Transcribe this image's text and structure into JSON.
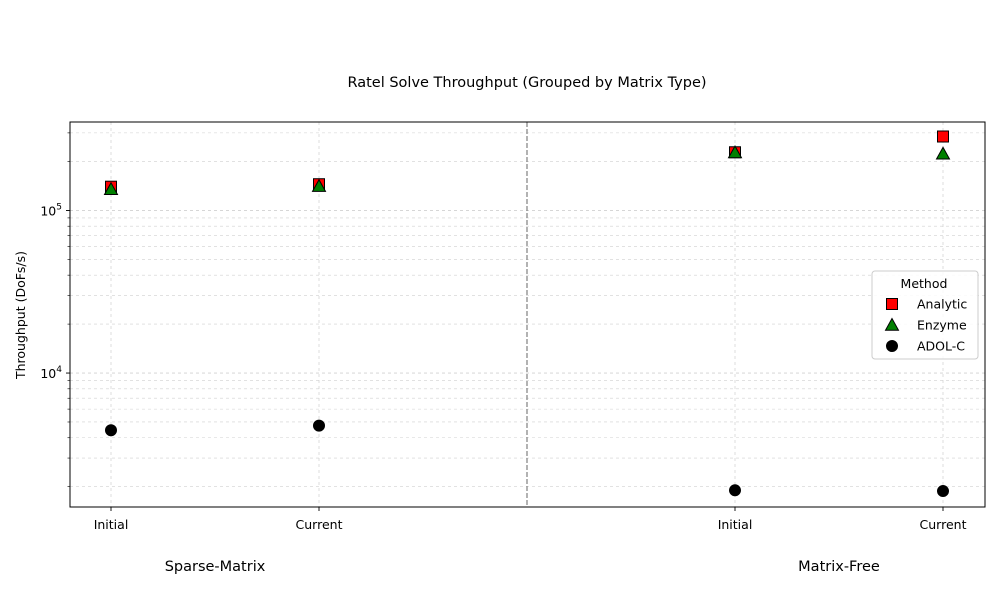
{
  "chart_data": {
    "type": "scatter",
    "title": "Ratel Solve Throughput (Grouped by Matrix Type)",
    "ylabel": "Throughput (DoFs/s)",
    "xlabel": "",
    "yscale": "log",
    "ylim": [
      1500,
      350000
    ],
    "yticks": [
      {
        "value": 10000,
        "base": "10",
        "exp": "4"
      },
      {
        "value": 100000,
        "base": "10",
        "exp": "5"
      }
    ],
    "grid": true,
    "categories": [
      "Initial",
      "Current",
      "Initial",
      "Current"
    ],
    "groups": [
      {
        "name": "Sparse-Matrix",
        "category_indices": [
          0,
          1
        ]
      },
      {
        "name": "Matrix-Free",
        "category_indices": [
          2,
          3
        ]
      }
    ],
    "series": [
      {
        "name": "Analytic",
        "marker": "square",
        "color": "#ff0000",
        "values": [
          140000,
          145000,
          228000,
          285000
        ]
      },
      {
        "name": "Enzyme",
        "marker": "triangle",
        "color": "#008000",
        "values": [
          135000,
          141000,
          227000,
          223000
        ]
      },
      {
        "name": "ADOL-C",
        "marker": "circle",
        "color": "#000000",
        "values": [
          4450,
          4750,
          1900,
          1880
        ]
      }
    ],
    "legend": {
      "title": "Method",
      "placement": "center-right"
    }
  }
}
